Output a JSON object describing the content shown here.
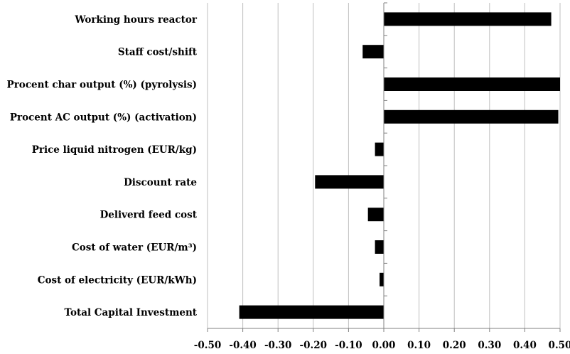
{
  "chart_data": {
    "type": "bar",
    "orientation": "horizontal",
    "title": "",
    "xlabel": "",
    "ylabel": "",
    "categories": [
      "Working hours reactor",
      "Staff cost/shift",
      "Procent char output (%) (pyrolysis)",
      "Procent AC output (%) (activation)",
      "Price liquid nitrogen (EUR/kg)",
      "Discount rate",
      "Deliverd feed cost",
      "Cost of water (EUR/m³)",
      "Cost of electricity (EUR/kWh)",
      "Total Capital Investment"
    ],
    "values": [
      0.475,
      -0.06,
      0.5,
      0.495,
      -0.025,
      -0.195,
      -0.045,
      -0.025,
      -0.012,
      -0.41
    ],
    "xlim": [
      -0.5,
      0.5
    ],
    "xticks": [
      "-0.50",
      "-0.40",
      "-0.30",
      "-0.20",
      "-0.10",
      "0.00",
      "0.10",
      "0.20",
      "0.30",
      "0.40",
      "0.50"
    ],
    "tick_values": [
      -0.5,
      -0.4,
      -0.3,
      -0.2,
      -0.1,
      0.0,
      0.1,
      0.2,
      0.3,
      0.4,
      0.5
    ],
    "grid": "vertical",
    "legend": "none",
    "colors": {
      "bar": "#000000",
      "grid": "#bfbfbf",
      "axis": "#808080"
    }
  }
}
